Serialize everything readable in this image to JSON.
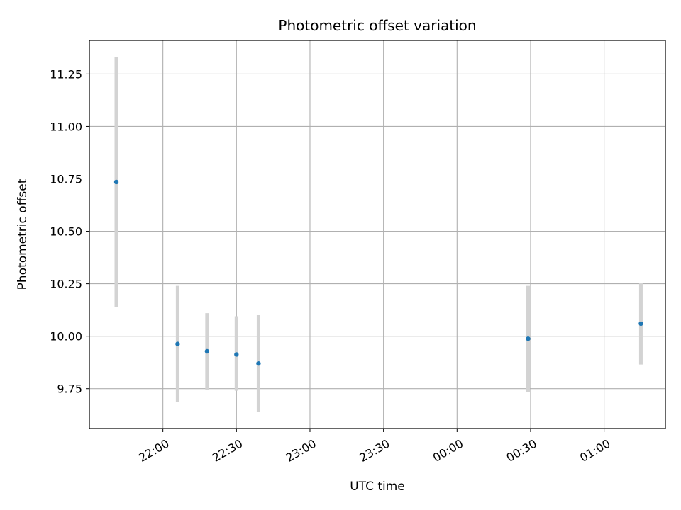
{
  "chart_data": {
    "type": "scatter",
    "title": "Photometric offset variation",
    "xlabel": "UTC time",
    "ylabel": "Photometric offset",
    "x_ticks": [
      "22:00",
      "22:30",
      "23:00",
      "23:30",
      "00:00",
      "00:30",
      "01:00"
    ],
    "y_ticks": [
      "9.75",
      "10.00",
      "10.25",
      "10.50",
      "10.75",
      "11.00",
      "11.25"
    ],
    "xlim": [
      "21:30",
      "01:25"
    ],
    "ylim": [
      9.56,
      11.41
    ],
    "grid": true,
    "point_color": "#1f77b4",
    "error_color": "#d3d3d3",
    "points": [
      {
        "x": "21:41",
        "y": 10.735,
        "y_low": 10.14,
        "y_high": 11.33
      },
      {
        "x": "22:06",
        "y": 9.963,
        "y_low": 9.685,
        "y_high": 10.24
      },
      {
        "x": "22:18",
        "y": 9.928,
        "y_low": 9.745,
        "y_high": 10.11
      },
      {
        "x": "22:30",
        "y": 9.913,
        "y_low": 9.74,
        "y_high": 10.095
      },
      {
        "x": "22:39",
        "y": 9.87,
        "y_low": 9.64,
        "y_high": 10.1
      },
      {
        "x": "00:29",
        "y": 9.988,
        "y_low": 9.735,
        "y_high": 10.24
      },
      {
        "x": "01:15",
        "y": 10.06,
        "y_low": 9.865,
        "y_high": 10.255
      }
    ]
  }
}
